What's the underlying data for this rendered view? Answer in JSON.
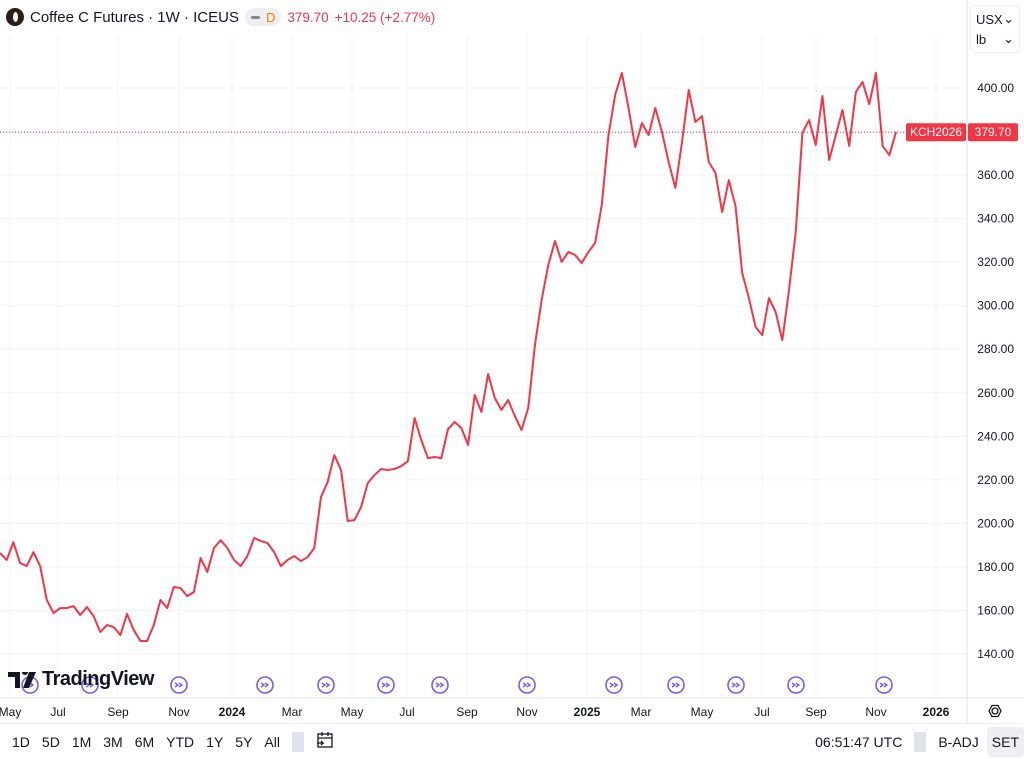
{
  "header": {
    "title": "Coffee C Futures · 1W · ICEUS",
    "interval_badge": "D",
    "price": "379.70",
    "change": "+10.25 (+2.77%)"
  },
  "units": {
    "currency": "USX",
    "measure": "lb"
  },
  "price_label": {
    "symbol": "KCH2026",
    "value": "379.70"
  },
  "watermark": "TradingView",
  "colors": {
    "line": "#f23645",
    "event": "#7e57f2",
    "grid": "#f0f3fa"
  },
  "toolbar": {
    "ranges": [
      "1D",
      "5D",
      "1M",
      "3M",
      "6M",
      "YTD",
      "1Y",
      "5Y",
      "All"
    ],
    "time": "06:51:47 UTC",
    "badj": "B-ADJ",
    "set": "SET"
  },
  "chart_data": {
    "type": "line",
    "interval": "weekly",
    "ylim": [
      125,
      415
    ],
    "y_ticks": [
      140,
      160,
      180,
      200,
      220,
      240,
      260,
      280,
      300,
      320,
      340,
      360,
      380,
      400
    ],
    "x_ticks": [
      "May",
      "Jul",
      "Sep",
      "Nov",
      "2024",
      "Mar",
      "May",
      "Jul",
      "Sep",
      "Nov",
      "2025",
      "Mar",
      "May",
      "Jul",
      "Sep",
      "Nov",
      "2026"
    ],
    "x_ticks_bold": [
      "2024",
      "2025",
      "2026"
    ],
    "grid": true,
    "values": [
      186.4,
      183.2,
      191.4,
      181.8,
      180.4,
      186.8,
      180.4,
      164.8,
      158.8,
      161.1,
      161.1,
      162.0,
      157.9,
      161.6,
      157.4,
      150.1,
      153.3,
      152.4,
      148.7,
      158.4,
      151.0,
      146.0,
      146.0,
      153.3,
      164.8,
      161.1,
      170.8,
      170.3,
      166.6,
      168.5,
      184.1,
      177.7,
      188.7,
      192.3,
      188.7,
      183.2,
      180.4,
      185.0,
      193.3,
      191.9,
      191.0,
      186.8,
      180.4,
      183.2,
      185.0,
      182.7,
      184.5,
      188.7,
      212.1,
      219.0,
      231.4,
      224.5,
      201.1,
      201.5,
      207.5,
      218.5,
      222.2,
      225.0,
      224.5,
      225.0,
      226.3,
      228.6,
      248.4,
      238.3,
      230.0,
      230.5,
      230.0,
      243.3,
      246.6,
      243.8,
      236.0,
      259.0,
      251.2,
      268.6,
      257.6,
      252.1,
      256.7,
      249.3,
      242.9,
      253.0,
      281.9,
      302.6,
      318.7,
      329.7,
      320.1,
      324.7,
      323.3,
      319.6,
      324.7,
      328.8,
      346.3,
      378.4,
      396.8,
      406.9,
      390.8,
      372.9,
      383.9,
      378.4,
      390.8,
      379.8,
      366.0,
      354.1,
      375.2,
      399.1,
      384.4,
      387.1,
      366.0,
      361.0,
      343.0,
      357.7,
      345.8,
      315.0,
      303.5,
      290.2,
      286.5,
      303.5,
      297.1,
      284.2,
      307.2,
      333.8,
      379.3,
      385.3,
      373.8,
      396.3,
      366.9,
      378.4,
      389.9,
      373.4,
      398.2,
      402.8,
      392.6,
      406.9,
      373.4,
      369.2,
      379.7
    ],
    "events_count": 13
  }
}
